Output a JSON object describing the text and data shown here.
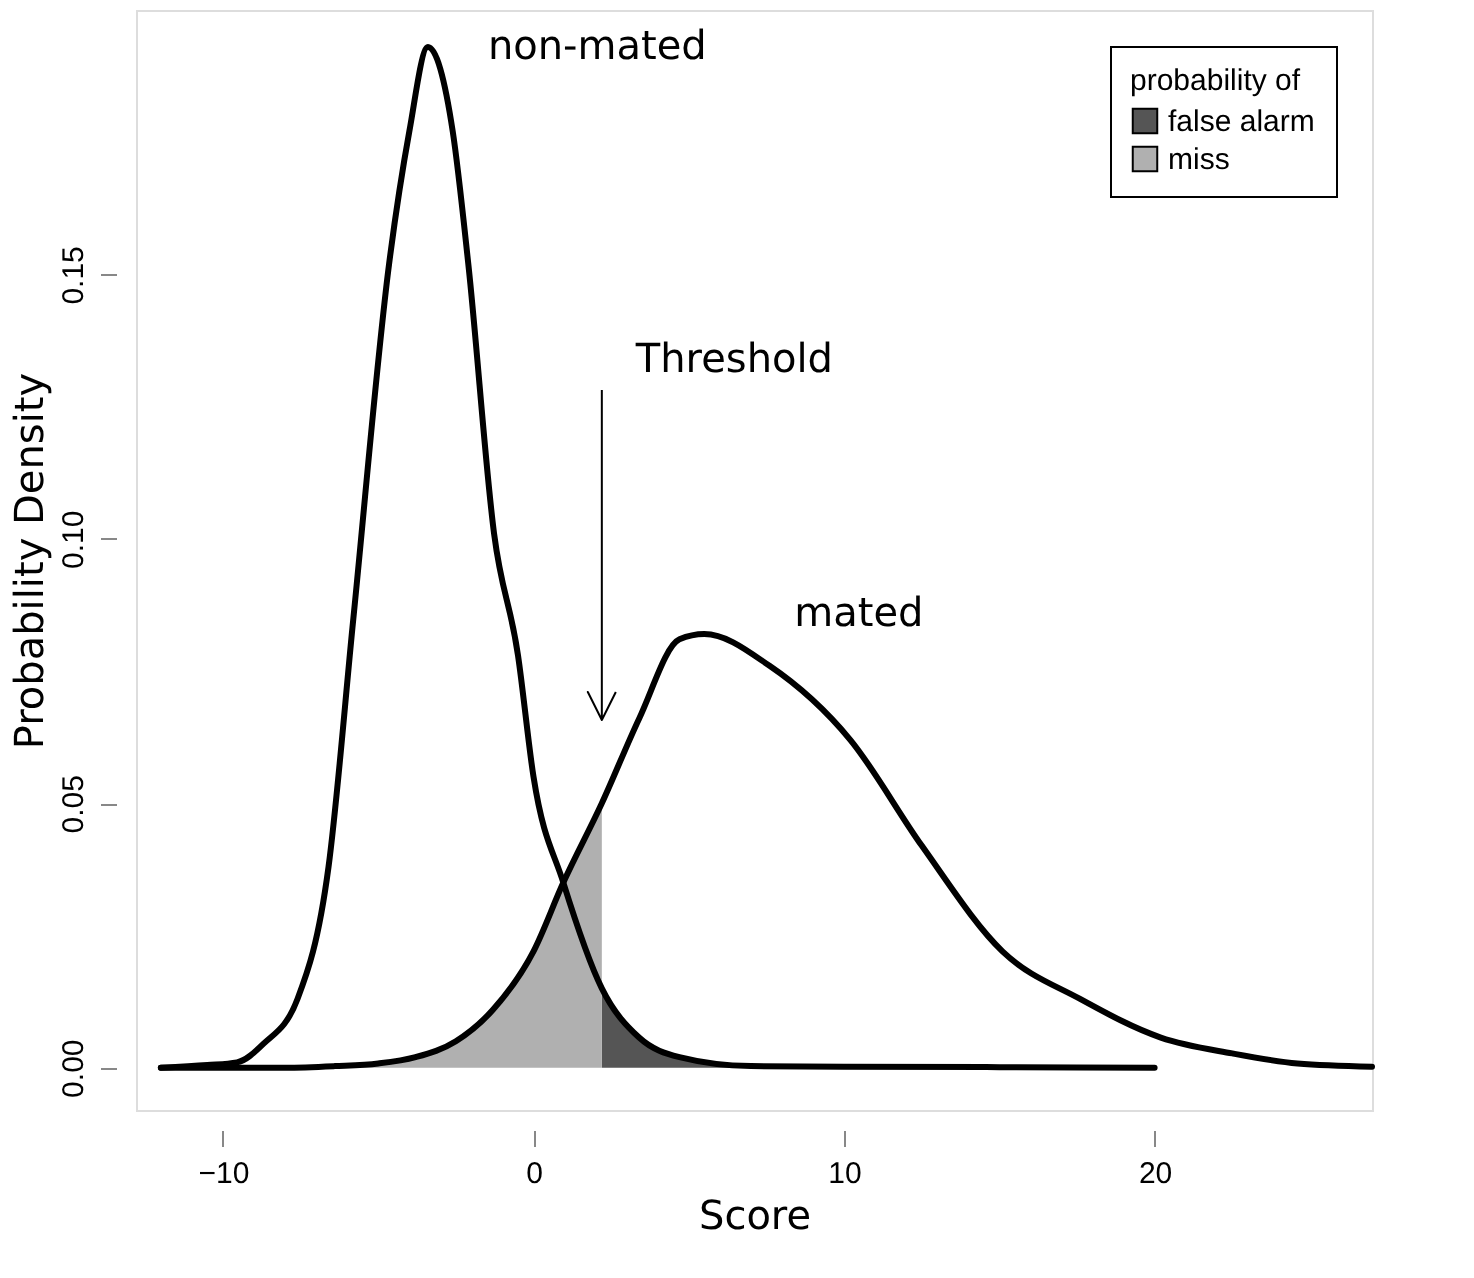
{
  "chart_data": {
    "type": "line",
    "xlabel": "Score",
    "ylabel": "Probability Density",
    "legend_title": "probability of",
    "legend": "top right",
    "xlim": [
      -12.8,
      27
    ],
    "xticks": [
      -10,
      0,
      10,
      20
    ],
    "ylim": [
      -0.008,
      0.2
    ],
    "yticks": [
      {
        "value": 0,
        "label": "0.00"
      },
      {
        "value": 0.05,
        "label": "0.05"
      },
      {
        "value": 0.1,
        "label": "0.10"
      },
      {
        "value": 0.15,
        "label": "0.15"
      }
    ],
    "series": [
      {
        "name": "false alarm",
        "type": "area",
        "color": "#555555",
        "x": [
          2.2,
          3.4,
          4.7,
          7.0,
          10,
          15,
          20
        ],
        "values": [
          0.015,
          0.0057,
          0.002,
          0.0003,
          0.0002,
          0.0001,
          0.0
        ]
      },
      {
        "name": "miss",
        "type": "area",
        "color": "#b0b0b0",
        "x": [
          -12,
          -8,
          -6.4,
          -5,
          -3.8,
          -2.5,
          -1.3,
          0,
          0.96,
          2.2
        ],
        "values": [
          0.0,
          0.0,
          0.0003,
          0.0008,
          0.002,
          0.005,
          0.011,
          0.022,
          0.035,
          0.05
        ]
      },
      {
        "name": "non-mated",
        "color": "#000000",
        "x": [
          -12,
          -10.5,
          -9.55,
          -8.7,
          -7.6,
          -6.6,
          -5.8,
          -4.65,
          -4.0,
          -3.4,
          -2.6,
          -2.1,
          -1.27,
          -0.5,
          0,
          0.96,
          2.2,
          3.4,
          4.7,
          7.0,
          10,
          15,
          20
        ],
        "values": [
          0.0,
          0.0005,
          0.001,
          0.0045,
          0.013,
          0.038,
          0.085,
          0.152,
          0.177,
          0.193,
          0.177,
          0.152,
          0.101,
          0.078,
          0.055,
          0.035,
          0.015,
          0.0057,
          0.002,
          0.0003,
          0.0002,
          0.0001,
          0.0
        ]
      },
      {
        "name": "mated",
        "color": "#000000",
        "x": [
          -12,
          -8,
          -6.4,
          -5,
          -3.8,
          -2.5,
          -1.3,
          0,
          0.96,
          2.2,
          3.4,
          4.7,
          5.5,
          7.6,
          10.2,
          12.5,
          15.1,
          17.6,
          20.2,
          22.5,
          24.6,
          27
        ],
        "values": [
          0.0,
          0.0,
          0.0003,
          0.0008,
          0.002,
          0.005,
          0.011,
          0.022,
          0.035,
          0.05,
          0.066,
          0.081,
          0.082,
          0.076,
          0.062,
          0.042,
          0.022,
          0.013,
          0.0057,
          0.0027,
          0.0008,
          0.0002
        ]
      }
    ],
    "ref_lines": [
      {
        "axis": "x",
        "value": 2.2,
        "label": "Threshold"
      }
    ]
  }
}
